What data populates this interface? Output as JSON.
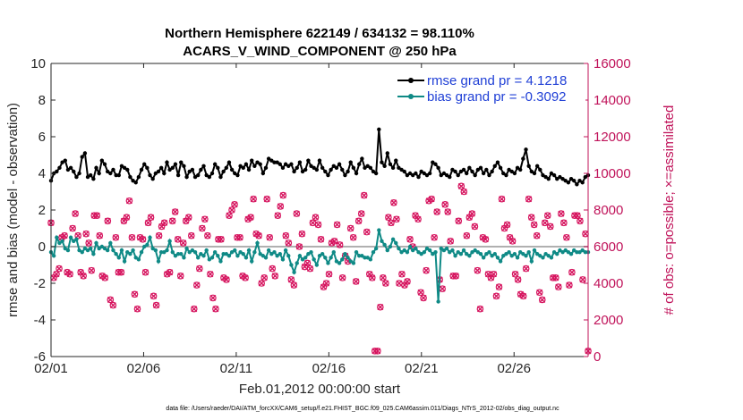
{
  "chart_data": {
    "type": "line",
    "title_lines": [
      "Northern Hemisphere 622149 / 634132 = 98.110%",
      "ACARS_V_WIND_COMPONENT @ 250 hPa"
    ],
    "xlabel": "Feb.01,2012 00:00:00 start",
    "ylabel_left": "rmse and bias (model - observation)",
    "ylabel_right": "# of obs: o=possible; ×=assimilated",
    "x_ticks": [
      "02/01",
      "02/06",
      "02/11",
      "02/16",
      "02/21",
      "02/26"
    ],
    "x_tick_days": [
      0,
      5,
      10,
      15,
      20,
      25
    ],
    "xlim": [
      0,
      29
    ],
    "ylim_left": [
      -6,
      10
    ],
    "y_ticks_left": [
      "-6",
      "-4",
      "-2",
      "0",
      "2",
      "4",
      "6",
      "8",
      "10"
    ],
    "ylim_right": [
      0,
      16000
    ],
    "y_ticks_right": [
      "0",
      "2000",
      "4000",
      "6000",
      "8000",
      "10000",
      "12000",
      "14000",
      "16000"
    ],
    "legend": {
      "location": "top-right",
      "entries": [
        "rmse grand pr = 4.1218",
        "bias grand pr = -0.3092"
      ]
    },
    "footnote": "data file: /Users/raeder/DAI/ATM_forcXX/CAM6_setup/f.e21.FHIST_BGC.f09_025.CAM6assim.011/Diags_NTrS_2012-02/obs_diag_output.nc",
    "colors": {
      "rmse": "#000000",
      "bias": "#0f8a86",
      "obs": "#d6155f",
      "zero_line": "#b0b0b0"
    },
    "series": [
      {
        "name": "rmse grand pr = 4.1218",
        "values": [
          3.6,
          4.0,
          4.1,
          4.3,
          4.6,
          4.7,
          4.2,
          4.3,
          4.1,
          3.8,
          4.0,
          4.9,
          5.1,
          3.8,
          3.9,
          3.7,
          4.3,
          4.0,
          4.7,
          4.5,
          4.1,
          4.0,
          4.2,
          3.9,
          3.9,
          4.4,
          4.3,
          4.2,
          3.8,
          3.6,
          3.5,
          3.8,
          4.2,
          4.5,
          4.3,
          3.9,
          3.7,
          4.0,
          4.1,
          4.3,
          4.0,
          4.6,
          4.2,
          4.3,
          4.5,
          3.9,
          4.6,
          4.4,
          3.8,
          4.1,
          4.2,
          3.8,
          3.9,
          4.2,
          4.4,
          3.9,
          3.8,
          4.0,
          4.5,
          4.3,
          3.8,
          4.1,
          4.3,
          4.6,
          4.2,
          4.0,
          3.9,
          4.4,
          4.3,
          4.5,
          4.2,
          4.7,
          4.4,
          4.6,
          4.5,
          4.0,
          4.3,
          4.8,
          4.7,
          4.6,
          4.6,
          4.5,
          4.3,
          4.5,
          4.4,
          4.5,
          4.1,
          4.3,
          4.6,
          4.1,
          4.2,
          4.7,
          4.4,
          4.3,
          4.2,
          4.7,
          4.3,
          4.1,
          3.9,
          4.2,
          4.4,
          4.3,
          4.5,
          4.2,
          3.9,
          4.1,
          4.6,
          4.3,
          4.0,
          4.5,
          4.8,
          4.3,
          4.4,
          4.3,
          4.1,
          4.0,
          6.4,
          4.6,
          4.4,
          5.1,
          4.5,
          4.3,
          4.7,
          4.3,
          4.2,
          4.1,
          3.9,
          4.0,
          3.9,
          4.0,
          3.8,
          4.1,
          4.0,
          3.9,
          4.0,
          4.6,
          4.5,
          4.3,
          3.9,
          4.0,
          3.9,
          3.8,
          4.2,
          4.1,
          3.9,
          4.1,
          4.2,
          4.0,
          4.3,
          4.1,
          3.9,
          4.2,
          4.3,
          4.0,
          4.2,
          3.9,
          4.1,
          4.4,
          4.6,
          4.3,
          4.0,
          3.9,
          4.2,
          4.1,
          4.0,
          4.3,
          4.2,
          4.8,
          5.3,
          4.4,
          4.1,
          4.0,
          4.4,
          4.2,
          3.9,
          3.8,
          3.7,
          4.0,
          3.9,
          3.7,
          3.8,
          3.7,
          3.6,
          3.5,
          3.7,
          3.6,
          3.4,
          3.6,
          3.5,
          3.8,
          3.9
        ]
      },
      {
        "name": "bias grand pr = -0.3092",
        "values": [
          -0.3,
          -0.5,
          0.5,
          0.2,
          0.3,
          -0.1,
          -0.2,
          0.5,
          0.3,
          0.4,
          -0.2,
          -0.3,
          -0.1,
          -0.2,
          -0.1,
          -0.4,
          0.2,
          -0.1,
          0.0,
          -0.1,
          -0.2,
          0.2,
          -0.2,
          -0.4,
          -0.6,
          -0.2,
          -0.8,
          -0.3,
          -0.4,
          -0.2,
          -0.6,
          -0.7,
          -0.3,
          0.0,
          0.1,
          0.5,
          -0.1,
          -0.2,
          -0.8,
          -0.3,
          -0.3,
          -0.2,
          0.3,
          -0.3,
          -0.5,
          -0.4,
          -0.4,
          -0.6,
          -0.1,
          -0.3,
          -0.2,
          -0.3,
          -0.6,
          -0.4,
          -0.5,
          -0.2,
          -0.7,
          -0.6,
          -0.3,
          -0.5,
          -0.8,
          -0.4,
          -0.4,
          -0.5,
          -0.3,
          -0.2,
          -0.5,
          -0.3,
          -0.4,
          -0.6,
          -0.2,
          -0.8,
          -0.3,
          0.2,
          -0.4,
          -0.5,
          -0.6,
          -0.2,
          -0.4,
          -0.3,
          -0.5,
          -0.4,
          -0.7,
          -0.2,
          -0.5,
          -1.0,
          -1.4,
          -0.9,
          -0.5,
          -0.7,
          -0.6,
          -0.4,
          -0.3,
          -0.7,
          -1.0,
          -0.5,
          -0.4,
          -0.6,
          -0.9,
          -0.6,
          -0.3,
          -0.8,
          -0.9,
          -0.7,
          -0.4,
          -0.6,
          -0.8,
          -0.9,
          -0.3,
          -0.5,
          -0.5,
          -0.6,
          -0.6,
          -0.7,
          -0.3,
          -0.1,
          0.9,
          0.3,
          0.1,
          -0.2,
          0.0,
          0.4,
          0.2,
          -0.1,
          -0.3,
          -0.2,
          -0.3,
          0.0,
          -0.2,
          -0.1,
          -0.3,
          -0.4,
          -0.3,
          -0.1,
          -0.2,
          -0.4,
          -0.3,
          -3.0,
          -0.1,
          -0.2,
          -0.1,
          -0.3,
          -0.2,
          -0.5,
          -0.3,
          -0.4,
          -0.2,
          -0.4,
          -0.5,
          -0.3,
          -0.2,
          -0.3,
          -0.4,
          -0.6,
          -0.4,
          -0.3,
          -0.5,
          -0.4,
          -0.6,
          -0.8,
          -0.5,
          -0.4,
          -0.3,
          -0.5,
          -0.4,
          -0.6,
          -0.3,
          -0.4,
          -0.5,
          -0.3,
          -0.8,
          -0.2,
          -0.4,
          -0.5,
          -0.6,
          -0.4,
          -0.5,
          -0.6,
          -0.3,
          -0.4,
          -0.2,
          -0.3,
          -0.2,
          -0.3,
          -0.4,
          -0.2,
          -0.3,
          -0.3,
          -0.2,
          -0.3,
          -0.3
        ]
      }
    ],
    "obs_counts": [
      7300,
      4300,
      4500,
      4800,
      6500,
      6600,
      4600,
      4500,
      7000,
      7800,
      6600,
      4600,
      4400,
      6700,
      6200,
      4700,
      7700,
      7700,
      6600,
      4400,
      4300,
      7400,
      3100,
      2800,
      6500,
      4600,
      4600,
      7400,
      7600,
      8500,
      6500,
      3400,
      2600,
      6500,
      6400,
      4600,
      7300,
      7600,
      3300,
      2800,
      6600,
      7100,
      7300,
      4500,
      4600,
      7400,
      7900,
      6400,
      4400,
      6200,
      7400,
      7600,
      6600,
      2600,
      3900,
      4800,
      7000,
      7500,
      6600,
      4500,
      3200,
      2600,
      6400,
      6400,
      4300,
      4200,
      7700,
      8000,
      8300,
      6500,
      6500,
      4400,
      4300,
      7500,
      7600,
      8600,
      6700,
      6600,
      4000,
      4300,
      8600,
      6500,
      4800,
      4400,
      7700,
      8200,
      8800,
      6600,
      6200,
      4200,
      3900,
      7800,
      6000,
      6700,
      4900,
      5100,
      4800,
      7300,
      7600,
      7200,
      6400,
      3800,
      4000,
      4500,
      6200,
      6300,
      7200,
      6100,
      4300,
      5500,
      5200,
      7000,
      6500,
      4100,
      7400,
      7800,
      8800,
      6800,
      4500,
      4300,
      300,
      300,
      2700,
      4300,
      4000,
      7600,
      7300,
      8400,
      7500,
      4000,
      4500,
      3900,
      4100,
      6400,
      6000,
      7700,
      7500,
      3500,
      3200,
      4700,
      8500,
      8600,
      6500,
      7900,
      4200,
      3700,
      8300,
      7900,
      6300,
      4400,
      4400,
      7400,
      9300,
      9000,
      6600,
      7600,
      7800,
      7100,
      4700,
      2600,
      6500,
      6400,
      4500,
      4300,
      4500,
      3300,
      3800,
      8600,
      7000,
      7200,
      6500,
      6300,
      4500,
      4200,
      3400,
      3300,
      4800,
      8600,
      7600,
      7200,
      6600,
      3500,
      3100,
      7300,
      7700,
      7100,
      4300,
      4300,
      3800,
      7800,
      7300,
      6500,
      3900,
      4600,
      7700,
      7700,
      7400,
      4200,
      6700,
      300
    ]
  }
}
